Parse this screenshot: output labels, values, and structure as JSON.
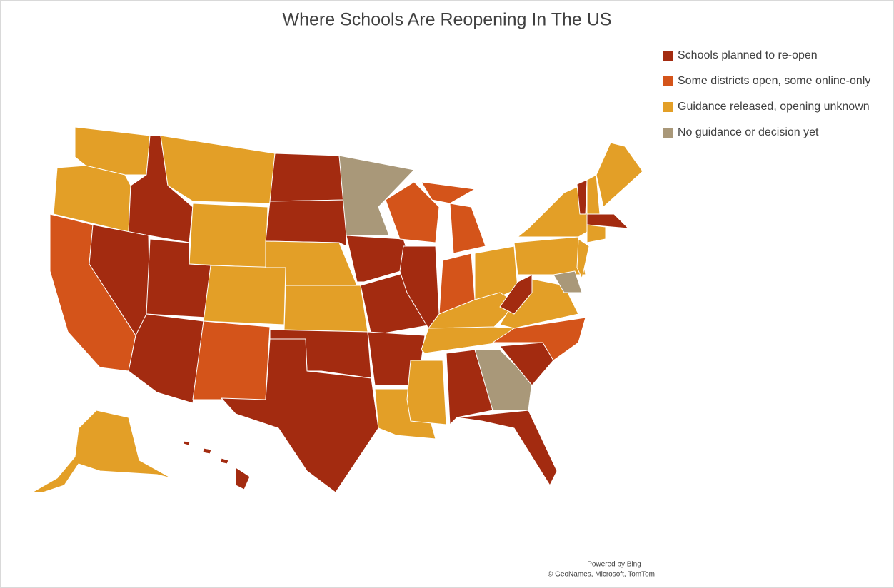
{
  "title": "Where Schools Are Reopening In The US",
  "legend": [
    {
      "label": "Schools planned to re-open",
      "color": "#A32B10"
    },
    {
      "label": "Some districts open, some online-only",
      "color": "#D4541A"
    },
    {
      "label": "Guidance released, opening unknown",
      "color": "#E39F27"
    },
    {
      "label": "No guidance or decision yet",
      "color": "#A99879"
    }
  ],
  "attribution": [
    "Powered by Bing",
    "© GeoNames, Microsoft, TomTom"
  ]
}
